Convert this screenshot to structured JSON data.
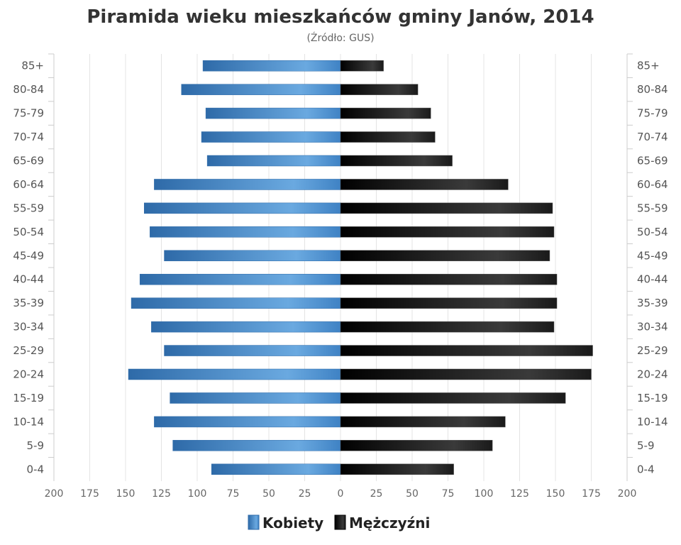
{
  "chart_data": {
    "type": "bar",
    "orientation": "horizontal-pyramid",
    "title": "Piramida wieku mieszkańców gminy Janów, 2014",
    "subtitle": "(Źródło: GUS)",
    "categories": [
      "85+",
      "80-84",
      "75-79",
      "70-74",
      "65-69",
      "60-64",
      "55-59",
      "50-54",
      "45-49",
      "40-44",
      "35-39",
      "30-34",
      "25-29",
      "20-24",
      "15-19",
      "10-14",
      "5-9",
      "0-4"
    ],
    "series": [
      {
        "name": "Kobiety",
        "color": "#3f82c4",
        "side": "left",
        "values": [
          96,
          111,
          94,
          97,
          93,
          130,
          137,
          133,
          123,
          140,
          146,
          132,
          123,
          148,
          119,
          130,
          117,
          90
        ]
      },
      {
        "name": "Mężczyźni",
        "color": "#111111",
        "side": "right",
        "values": [
          30,
          54,
          63,
          66,
          78,
          117,
          148,
          149,
          146,
          151,
          151,
          149,
          176,
          175,
          157,
          115,
          106,
          79
        ]
      }
    ],
    "xlim": [
      -200,
      200
    ],
    "xticks": [
      "200",
      "175",
      "150",
      "125",
      "100",
      "75",
      "50",
      "25",
      "0",
      "25",
      "50",
      "75",
      "100",
      "125",
      "150",
      "175",
      "200"
    ],
    "grid": true,
    "legend": "bottom"
  }
}
